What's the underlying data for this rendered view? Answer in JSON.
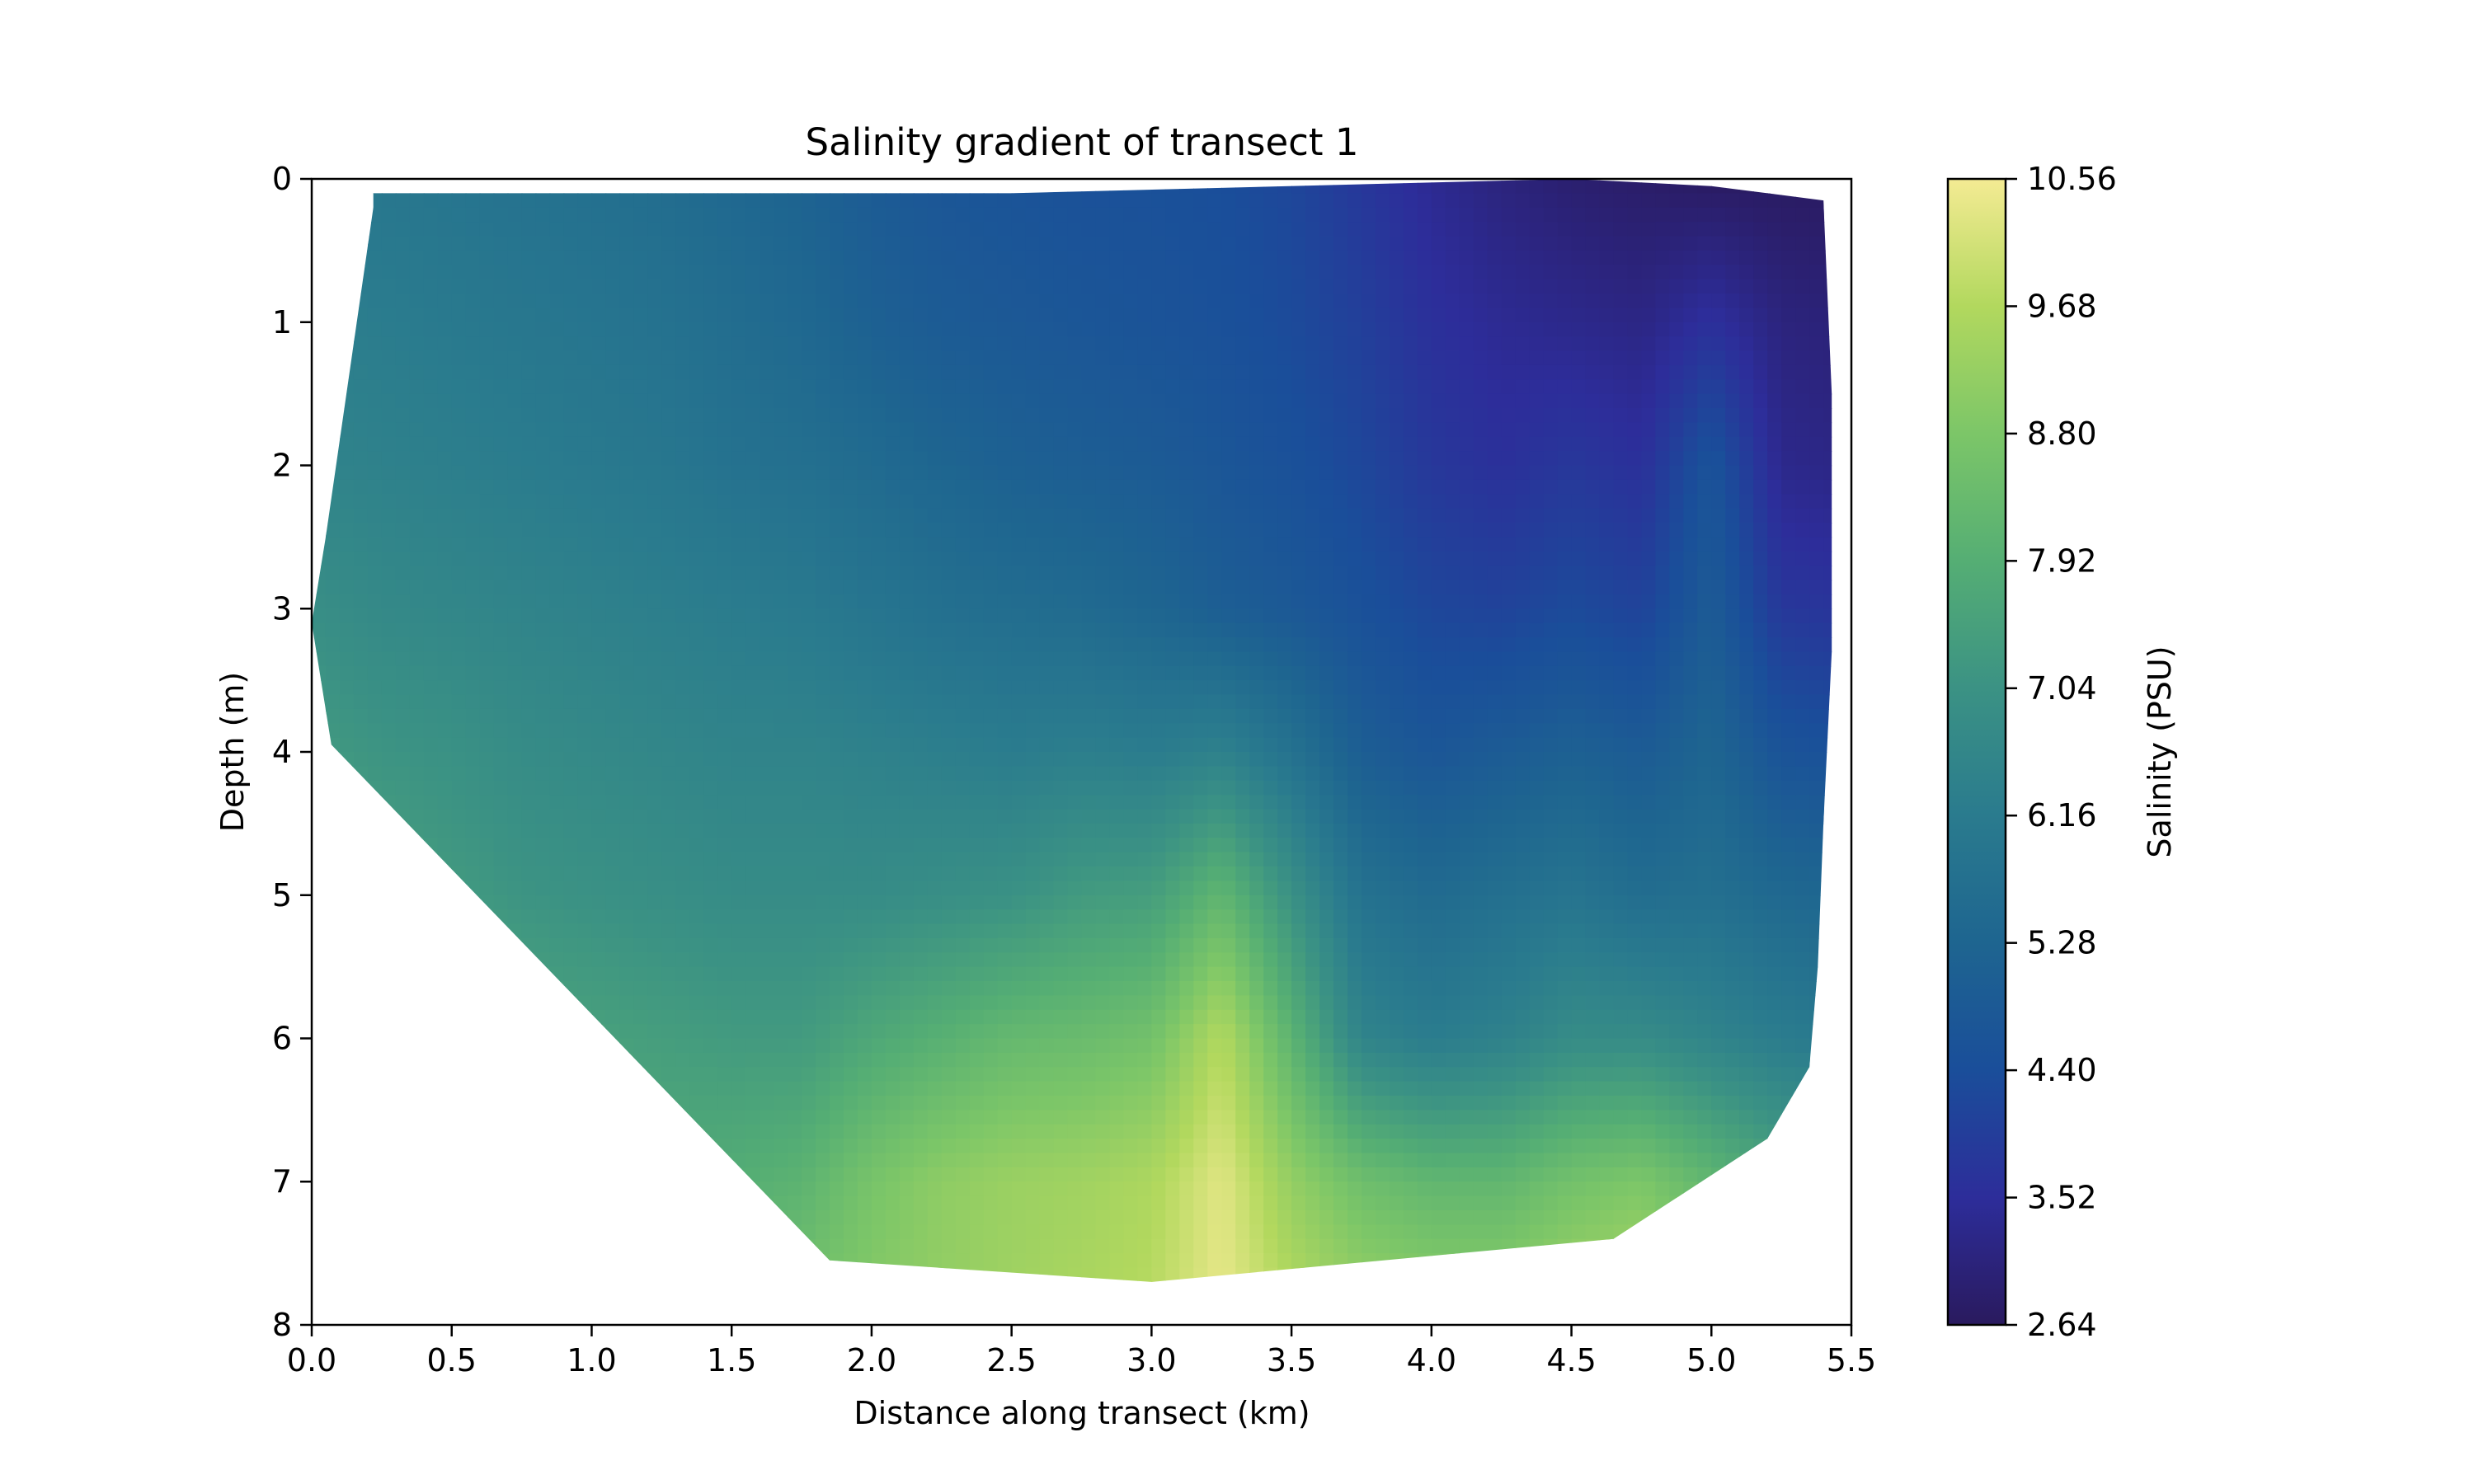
{
  "chart_data": {
    "type": "heatmap",
    "title": "Salinity gradient of transect 1",
    "xlabel": "Distance along transect (km)",
    "ylabel": "Depth (m)",
    "xlim": [
      0.0,
      5.5
    ],
    "ylim": [
      8,
      0
    ],
    "y_inverted": true,
    "x_ticks": [
      0.0,
      0.5,
      1.0,
      1.5,
      2.0,
      2.5,
      3.0,
      3.5,
      4.0,
      4.5,
      5.0,
      5.5
    ],
    "x_tick_labels": [
      "0.0",
      "0.5",
      "1.0",
      "1.5",
      "2.0",
      "2.5",
      "3.0",
      "3.5",
      "4.0",
      "4.5",
      "5.0",
      "5.5"
    ],
    "y_ticks": [
      0,
      1,
      2,
      3,
      4,
      5,
      6,
      7,
      8
    ],
    "y_tick_labels": [
      "0",
      "1",
      "2",
      "3",
      "4",
      "5",
      "6",
      "7",
      "8"
    ],
    "grid": false,
    "colormap": "haline",
    "colorbar": {
      "label": "Salinity (PSU)",
      "min": 2.64,
      "max": 10.56,
      "ticks": [
        2.64,
        3.52,
        4.4,
        5.28,
        6.16,
        7.04,
        7.92,
        8.8,
        9.68,
        10.56
      ],
      "tick_labels": [
        "2.64",
        "3.52",
        "4.40",
        "5.28",
        "6.16",
        "7.04",
        "7.92",
        "8.80",
        "9.68",
        "10.56"
      ],
      "stops": [
        "#2a1a5e",
        "#2d2d9a",
        "#1a4e9a",
        "#1e6590",
        "#2a7b8e",
        "#3b9284",
        "#55ae74",
        "#7cc668",
        "#b2d85e",
        "#f4eb93"
      ]
    },
    "boundary": [
      [
        0.22,
        0.1
      ],
      [
        2.5,
        0.1
      ],
      [
        4.5,
        0.0
      ],
      [
        5.0,
        0.05
      ],
      [
        5.4,
        0.15
      ],
      [
        5.43,
        1.5
      ],
      [
        5.43,
        3.3
      ],
      [
        5.4,
        4.5
      ],
      [
        5.38,
        5.5
      ],
      [
        5.35,
        6.2
      ],
      [
        5.2,
        6.7
      ],
      [
        4.65,
        7.4
      ],
      [
        3.0,
        7.7
      ],
      [
        1.85,
        7.55
      ],
      [
        0.07,
        3.95
      ],
      [
        0.0,
        3.1
      ],
      [
        0.05,
        2.5
      ],
      [
        0.22,
        0.2
      ]
    ],
    "field_grid": {
      "x": [
        0.0,
        0.25,
        0.5,
        0.75,
        1.0,
        1.25,
        1.5,
        1.75,
        2.0,
        2.25,
        2.5,
        2.75,
        3.0,
        3.25,
        3.5,
        3.75,
        4.0,
        4.25,
        4.5,
        4.75,
        5.0,
        5.25,
        5.5
      ],
      "depth": [
        0,
        1,
        2,
        3,
        4,
        5,
        6,
        7,
        8
      ],
      "salinity": [
        [
          6.0,
          6.0,
          5.9,
          5.8,
          5.7,
          5.6,
          5.4,
          5.2,
          4.9,
          4.7,
          4.6,
          4.5,
          4.5,
          4.4,
          4.2,
          3.8,
          3.4,
          3.1,
          2.9,
          2.8,
          2.7,
          2.7,
          2.7
        ],
        [
          6.3,
          6.2,
          6.1,
          6.0,
          5.9,
          5.8,
          5.6,
          5.4,
          5.1,
          4.9,
          4.8,
          4.7,
          4.6,
          4.5,
          4.3,
          4.0,
          3.6,
          3.4,
          3.3,
          3.2,
          3.6,
          3.1,
          3.0
        ],
        [
          6.5,
          6.4,
          6.3,
          6.2,
          6.1,
          6.0,
          5.8,
          5.7,
          5.5,
          5.3,
          5.1,
          5.0,
          4.9,
          4.7,
          4.5,
          4.2,
          3.8,
          3.6,
          3.8,
          3.6,
          4.6,
          3.3,
          3.2
        ],
        [
          6.9,
          6.7,
          6.6,
          6.5,
          6.4,
          6.3,
          6.2,
          6.1,
          5.9,
          5.7,
          5.6,
          5.5,
          5.3,
          5.0,
          4.8,
          4.5,
          4.2,
          4.1,
          4.3,
          4.1,
          4.9,
          3.8,
          3.7
        ],
        [
          7.3,
          7.1,
          7.0,
          6.8,
          6.7,
          6.6,
          6.5,
          6.5,
          6.4,
          6.3,
          6.2,
          6.3,
          6.2,
          6.4,
          5.8,
          5.0,
          4.7,
          4.9,
          5.1,
          4.9,
          5.3,
          4.6,
          4.5
        ],
        [
          7.6,
          7.5,
          7.3,
          7.1,
          7.0,
          6.9,
          6.8,
          6.8,
          6.8,
          6.9,
          7.0,
          7.3,
          7.4,
          8.2,
          7.0,
          5.8,
          5.5,
          5.7,
          5.9,
          5.6,
          5.7,
          5.4,
          5.3
        ],
        [
          8.0,
          7.9,
          7.8,
          7.6,
          7.5,
          7.4,
          7.3,
          7.3,
          7.7,
          8.0,
          8.3,
          8.4,
          8.6,
          9.7,
          8.1,
          6.5,
          6.2,
          6.4,
          6.8,
          6.8,
          6.5,
          6.2,
          6.0
        ],
        [
          8.3,
          8.2,
          8.1,
          8.0,
          7.9,
          7.8,
          7.9,
          8.1,
          8.7,
          9.1,
          9.3,
          9.4,
          9.6,
          10.3,
          9.2,
          8.5,
          8.2,
          8.2,
          8.6,
          8.8,
          8.2,
          7.6,
          7.4
        ],
        [
          8.5,
          8.4,
          8.4,
          8.3,
          8.3,
          8.3,
          8.4,
          8.7,
          9.0,
          9.2,
          9.4,
          9.6,
          9.8,
          10.4,
          9.8,
          9.4,
          9.3,
          9.3,
          9.6,
          9.8,
          9.0,
          8.2,
          8.0
        ]
      ]
    }
  }
}
